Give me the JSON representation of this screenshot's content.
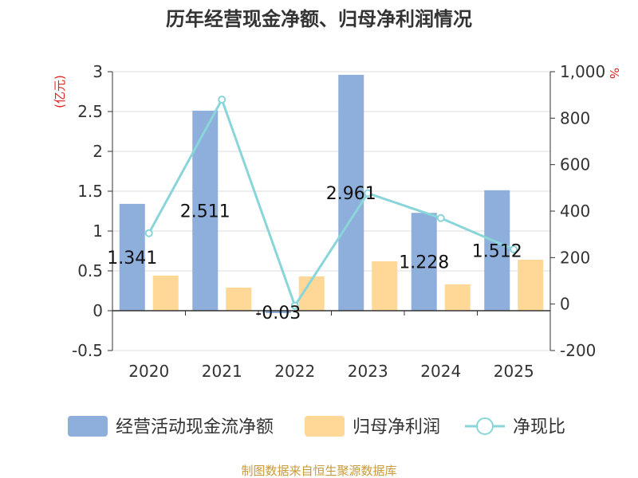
{
  "chart_data": {
    "type": "bar",
    "title": "历年经营现金净额、归母净利润情况",
    "categories": [
      "2020",
      "2021",
      "2022",
      "2023",
      "2024",
      "2025"
    ],
    "series": [
      {
        "name": "经营活动现金流净额",
        "type": "bar",
        "axis": "left",
        "color": "#8eaedb",
        "values": [
          1.341,
          2.511,
          -0.03,
          2.961,
          1.228,
          1.512
        ],
        "labels": [
          "1.341",
          "2.511",
          "-0.03",
          "2.961",
          "1.228",
          "1.512"
        ]
      },
      {
        "name": "归母净利润",
        "type": "bar",
        "axis": "left",
        "color": "#ffd797",
        "values": [
          0.44,
          0.29,
          0.43,
          0.62,
          0.33,
          0.64
        ]
      },
      {
        "name": "净现比",
        "type": "line",
        "axis": "right",
        "color": "#89d5d9",
        "values": [
          305,
          880,
          -7,
          477,
          370,
          235
        ]
      }
    ],
    "left_axis": {
      "unit": "(亿元)",
      "ylim": [
        -0.5,
        3
      ],
      "ticks": [
        "-0.5",
        "0",
        "0.5",
        "1",
        "1.5",
        "2",
        "2.5",
        "3"
      ],
      "tick_values": [
        -0.5,
        0,
        0.5,
        1,
        1.5,
        2,
        2.5,
        3
      ]
    },
    "right_axis": {
      "unit": "%",
      "ylim": [
        -200,
        1000
      ],
      "ticks": [
        "-200",
        "0",
        "200",
        "400",
        "600",
        "800",
        "1,000"
      ],
      "tick_values": [
        -200,
        0,
        200,
        400,
        600,
        800,
        1000
      ]
    },
    "legend_position": "bottom",
    "source": "制图数据来自恒生聚源数据库"
  }
}
